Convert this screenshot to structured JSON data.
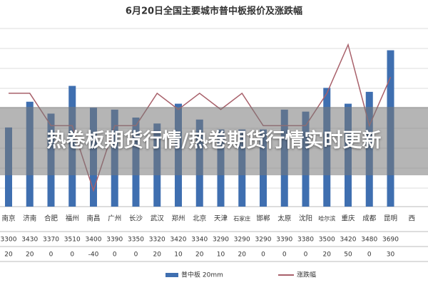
{
  "chart_data": {
    "type": "bar-line",
    "title": "6月20日全国主要城市普中板报价及涨跌幅",
    "categories": [
      "南京",
      "济南",
      "合肥",
      "福州",
      "南昌",
      "广州",
      "长沙",
      "武汉",
      "郑州",
      "北京",
      "天津",
      "石家庄",
      "邯郸",
      "太原",
      "沈阳",
      "哈尔滨",
      "重庆",
      "成都",
      "昆明",
      "西"
    ],
    "series": [
      {
        "name": "普中板 20mm",
        "color": "#3f6fb0",
        "type": "bar",
        "values": [
          3300,
          3430,
          3370,
          3510,
          3400,
          3390,
          3350,
          3320,
          3420,
          3340,
          3290,
          3290,
          3290,
          3390,
          3380,
          3500,
          3420,
          3480,
          3690,
          null
        ]
      },
      {
        "name": "涨跌幅",
        "color": "#a8606a",
        "type": "line",
        "axis": "y2",
        "values": [
          20,
          20,
          0,
          0,
          -40,
          0,
          0,
          20,
          10,
          20,
          10,
          20,
          0,
          0,
          0,
          20,
          50,
          0,
          30,
          null
        ]
      }
    ],
    "ylim": [
      2900,
      3800
    ],
    "y2lim": [
      -50,
      60
    ],
    "overlay_text": "热卷板期货行情/热卷期货行情实时更新"
  }
}
